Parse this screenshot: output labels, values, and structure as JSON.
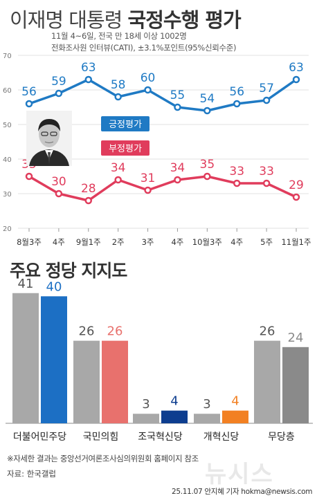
{
  "header": {
    "title_part1": "이재명 대통령",
    "title_part2": "국정수행 평가",
    "subtitle_line1": "11월 4~6일, 전국 만 18세 이상 1002명",
    "subtitle_line2": "전화조사원 인터뷰(CATI), ±3.1%포인트(95%신뢰수준)"
  },
  "chart_data": [
    {
      "type": "line",
      "x": [
        "8월3주",
        "4주",
        "9월1주",
        "2주",
        "3주",
        "4주",
        "10월3주",
        "4주",
        "5주",
        "11월1주"
      ],
      "ylim": [
        20,
        70
      ],
      "yticks": [
        20,
        30,
        40,
        50,
        60,
        70
      ],
      "series": [
        {
          "name": "긍정평가",
          "color": "#1f7ac4",
          "values": [
            56,
            59,
            63,
            58,
            60,
            55,
            54,
            56,
            57,
            63
          ]
        },
        {
          "name": "부정평가",
          "color": "#e03c5c",
          "values": [
            35,
            30,
            28,
            34,
            31,
            34,
            35,
            33,
            33,
            29
          ]
        }
      ]
    },
    {
      "type": "bar",
      "title": "주요 정당 지지도",
      "categories": [
        "더불어민주당",
        "국민의힘",
        "조국혁신당",
        "개혁신당",
        "무당층"
      ],
      "series": [
        {
          "values": [
            41,
            26,
            3,
            3,
            26
          ],
          "color": "#a8a8a8"
        },
        {
          "values": [
            40,
            26,
            4,
            4,
            24
          ],
          "colors": [
            "#1c6fc4",
            "#e8716d",
            "#0d3d8f",
            "#f28022",
            "#8a8a8a"
          ]
        }
      ]
    }
  ],
  "footer": {
    "note": "※자세한 결과는 중앙선거여론조사심의위원회 홈페이지 참조",
    "source": "자료: 한국갤럽",
    "credit": "25.11.07 안지혜 기자 hokma@newsis.com",
    "logo": "뉴시스"
  }
}
